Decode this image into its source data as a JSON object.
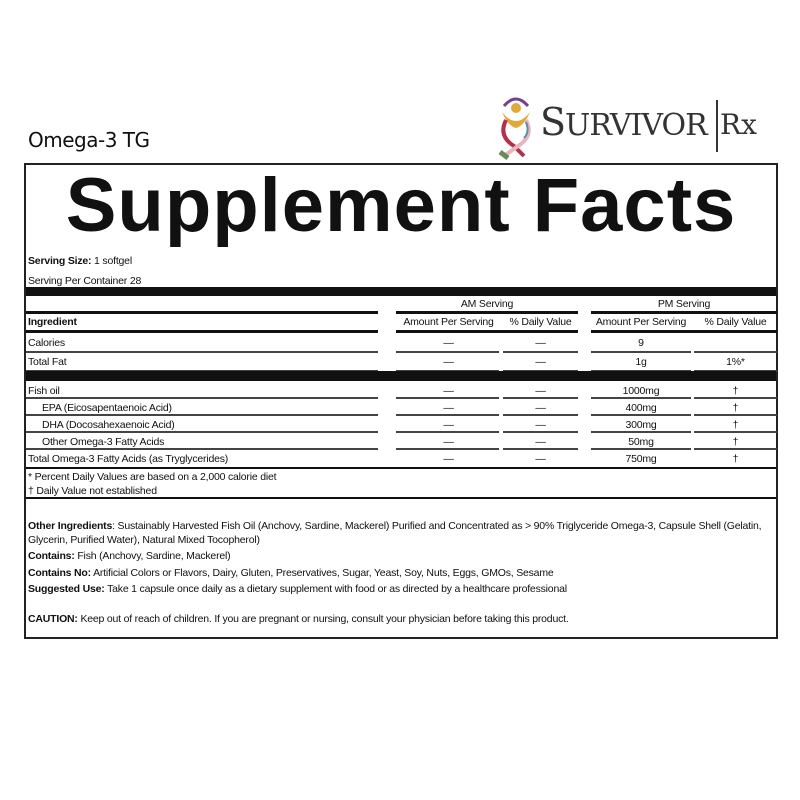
{
  "product_name": "Omega-3 TG",
  "brand": {
    "name_first": "S",
    "name_rest": "URVIVOR",
    "suffix": "Rx",
    "colors": [
      "#7a3e8e",
      "#e0a93a",
      "#b5304a",
      "#e8b4c0",
      "#6a8a5a",
      "#5a8fa8"
    ]
  },
  "title": "Supplement Facts",
  "serving": {
    "size_label": "Serving Size:",
    "size_value": " 1 softgel",
    "per_container": "Serving Per Container 28"
  },
  "headers": {
    "am": "AM Serving",
    "pm": "PM Serving",
    "ingredient": "Ingredient",
    "amount": "Amount Per Serving",
    "dv": "% Daily Value"
  },
  "rows1": [
    {
      "name": "Calories",
      "am_amt": "—",
      "am_dv": "—",
      "pm_amt": "9",
      "pm_dv": ""
    },
    {
      "name": "Total Fat",
      "am_amt": "—",
      "am_dv": "—",
      "pm_amt": "1g",
      "pm_dv": "1%*"
    }
  ],
  "rows2": [
    {
      "name": "Fish oil",
      "am_amt": "—",
      "am_dv": "—",
      "pm_amt": "1000mg",
      "pm_dv": "†"
    },
    {
      "name": "EPA (Eicosapentaenoic Acid)",
      "am_amt": "—",
      "am_dv": "—",
      "pm_amt": "400mg",
      "pm_dv": "†"
    },
    {
      "name": "DHA (Docosahexaenoic Acid)",
      "am_amt": "—",
      "am_dv": "—",
      "pm_amt": "300mg",
      "pm_dv": "†"
    },
    {
      "name": "Other Omega-3 Fatty Acids",
      "am_amt": "—",
      "am_dv": "—",
      "pm_amt": "50mg",
      "pm_dv": "†"
    },
    {
      "name": "Total Omega-3 Fatty Acids (as Tryglycerides)",
      "am_amt": "—",
      "am_dv": "—",
      "pm_amt": "750mg",
      "pm_dv": "†"
    }
  ],
  "footnotes": [
    "* Percent Daily Values are based on a 2,000 calorie diet",
    "† Daily Value not established"
  ],
  "info": {
    "other_label": "Other Ingredients",
    "other_text": ": Sustainably Harvested Fish Oil (Anchovy, Sardine, Mackerel) Purified and Concentrated as > 90% Triglyceride Omega-3, Capsule Shell (Gelatin, Glycerin, Purified Water), Natural Mixed Tocopherol)",
    "contains_label": "Contains:",
    "contains_text": " Fish (Anchovy, Sardine, Mackerel)",
    "contains_no_label": "Contains No:",
    "contains_no_text": " Artificial Colors or Flavors, Dairy, Gluten, Preservatives, Sugar, Yeast, Soy, Nuts, Eggs, GMOs, Sesame",
    "suggested_label": "Suggested Use:",
    "suggested_text": " Take 1 capsule once daily as a dietary supplement with food or as directed by a healthcare professional",
    "caution_label": "CAUTION:",
    "caution_text": " Keep out of reach of children.  If you are pregnant or nursing, consult your physician before taking this product."
  }
}
